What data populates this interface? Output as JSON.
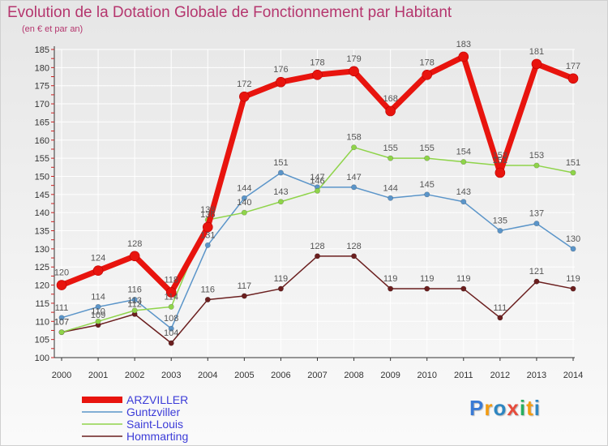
{
  "title": "Evolution de la Dotation Globale de Fonctionnement par Habitant",
  "subtitle": "(en € et par an)",
  "logo": {
    "text": "Proxiti",
    "letters": [
      "P",
      "r",
      "o",
      "x",
      "i",
      "t",
      "i"
    ],
    "colors": [
      "#3a7bd5",
      "#f39c12",
      "#2e86c1",
      "#e74c3c",
      "#27ae60",
      "#f39c12",
      "#2e86c1"
    ]
  },
  "chart_data": {
    "type": "line",
    "title": "Evolution de la Dotation Globale de Fonctionnement par Habitant",
    "subtitle": "(en € et par an)",
    "x": [
      "2000",
      "2001",
      "2002",
      "2003",
      "2004",
      "2005",
      "2006",
      "2007",
      "2008",
      "2009",
      "2010",
      "2011",
      "2012",
      "2013",
      "2014"
    ],
    "ylim": [
      100,
      185
    ],
    "yticks": [
      100,
      105,
      110,
      115,
      120,
      125,
      130,
      135,
      140,
      145,
      150,
      155,
      160,
      165,
      170,
      175,
      180,
      185
    ],
    "grid": true,
    "legend_position": "bottom-left",
    "series": [
      {
        "name": "ARZVILLER",
        "color": "#e8140e",
        "values": [
          120,
          124,
          128,
          118,
          136,
          172,
          176,
          178,
          179,
          168,
          178,
          183,
          151,
          181,
          177
        ]
      },
      {
        "name": "Guntzviller",
        "color": "#5b95c9",
        "values": [
          111,
          114,
          116,
          108,
          131,
          144,
          151,
          147,
          147,
          144,
          145,
          143,
          135,
          137,
          130
        ]
      },
      {
        "name": "Saint-Louis",
        "color": "#8fd44a",
        "values": [
          107,
          110,
          113,
          114,
          138,
          140,
          143,
          146,
          158,
          155,
          155,
          154,
          153,
          153,
          151
        ]
      },
      {
        "name": "Hommarting",
        "color": "#6b1f1f",
        "values": [
          107,
          109,
          112,
          104,
          116,
          117,
          119,
          128,
          128,
          119,
          119,
          119,
          111,
          121,
          119
        ]
      }
    ]
  }
}
